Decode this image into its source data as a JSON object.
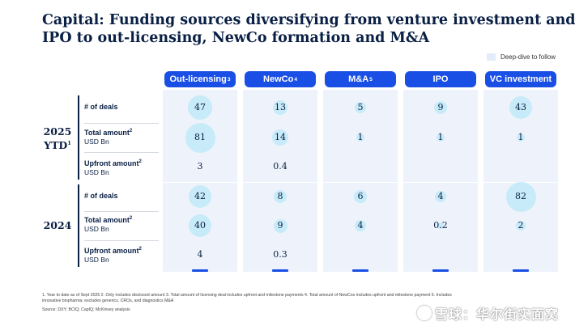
{
  "title_line1": "Capital: Funding sources diversifying from venture investment and",
  "title_line2": "IPO to out-licensing, NewCo formation and M&A",
  "legend_label": "Deep-dive to follow",
  "chart_data": {
    "type": "table",
    "title": "Capital: Funding sources diversifying from venture investment and IPO to out-licensing, NewCo formation and M&A",
    "columns": [
      {
        "label": "Out-licensing",
        "footnote": "3"
      },
      {
        "label": "NewCo",
        "footnote": "4"
      },
      {
        "label": "M&A",
        "footnote": "5"
      },
      {
        "label": "IPO",
        "footnote": ""
      },
      {
        "label": "VC investment",
        "footnote": ""
      }
    ],
    "groups": [
      {
        "year": "2025",
        "year_line2": "YTD",
        "year_footnote": "1",
        "rows": [
          {
            "label": "# of deals",
            "footnote": "",
            "unit": "",
            "values": [
              "47",
              "13",
              "5",
              "9",
              "43"
            ],
            "numeric": [
              47,
              13,
              5,
              9,
              43
            ]
          },
          {
            "label": "Total amount",
            "footnote": "2",
            "unit": "USD Bn",
            "values": [
              "81",
              "14",
              "1",
              "1",
              "1"
            ],
            "numeric": [
              81,
              14,
              1,
              1,
              1
            ]
          },
          {
            "label": "Upfront amount",
            "footnote": "2",
            "unit": "USD Bn",
            "values": [
              "3",
              "0.4",
              "",
              "",
              ""
            ],
            "numeric": [
              3,
              0.4,
              null,
              null,
              null
            ]
          }
        ]
      },
      {
        "year": "2024",
        "year_line2": "",
        "year_footnote": "",
        "rows": [
          {
            "label": "# of deals",
            "footnote": "",
            "unit": "",
            "values": [
              "42",
              "8",
              "6",
              "4",
              "82"
            ],
            "numeric": [
              42,
              8,
              6,
              4,
              82
            ]
          },
          {
            "label": "Total amount",
            "footnote": "2",
            "unit": "USD Bn",
            "values": [
              "40",
              "9",
              "4",
              "0.2",
              "2"
            ],
            "numeric": [
              40,
              9,
              4,
              0.2,
              2
            ]
          },
          {
            "label": "Upfront amount",
            "footnote": "2",
            "unit": "USD Bn",
            "values": [
              "4",
              "0.3",
              "",
              "",
              ""
            ],
            "numeric": [
              4,
              0.3,
              null,
              null,
              null
            ]
          }
        ]
      }
    ]
  },
  "footnote_line1": "1.     Year to date as of Sept 2025     2.     Only includes disclosed amount     3.     Total amount of licensing deal includes upfront and milestone payments 4. Total amount of NewCos includes upfront and milestone payment     5.     Includes",
  "footnote_line2": "        innovative biopharma; excludes generics, CROs, and diagnostics M&A",
  "source": "Source: DXY; BCIQ; CapIQ; McKinsey analysis",
  "watermark": "雪球：华尔街实面窝"
}
